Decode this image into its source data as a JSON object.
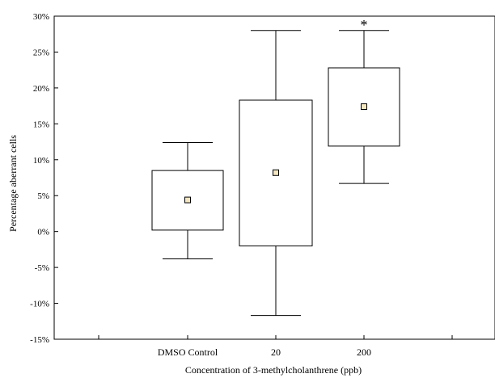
{
  "chart_data": {
    "type": "box",
    "xlabel": "Concentration of 3-methylcholanthrene (ppb)",
    "ylabel": "Percentage aberrant cells",
    "ylim": [
      -15,
      30
    ],
    "yticks": [
      -15,
      -10,
      -5,
      0,
      5,
      10,
      15,
      20,
      25,
      30
    ],
    "ytick_labels": [
      "-15%",
      "-10%",
      "-5%",
      "0%",
      "5%",
      "10%",
      "15%",
      "20%",
      "25%",
      "30%"
    ],
    "categories": [
      "DMSO Control",
      "20",
      "200"
    ],
    "boxes": [
      {
        "category": "DMSO Control",
        "whisker_low": -3.8,
        "box_low": 0.2,
        "mean": 4.4,
        "box_high": 8.5,
        "whisker_high": 12.4,
        "annotation": ""
      },
      {
        "category": "20",
        "whisker_low": -11.7,
        "box_low": -2.0,
        "mean": 8.2,
        "box_high": 18.3,
        "whisker_high": 28.0,
        "annotation": ""
      },
      {
        "category": "200",
        "whisker_low": 6.7,
        "box_low": 11.9,
        "mean": 17.4,
        "box_high": 22.8,
        "whisker_high": 28.0,
        "annotation": "*"
      }
    ],
    "mean_marker_color": "#f4e6bf",
    "grid": false
  }
}
